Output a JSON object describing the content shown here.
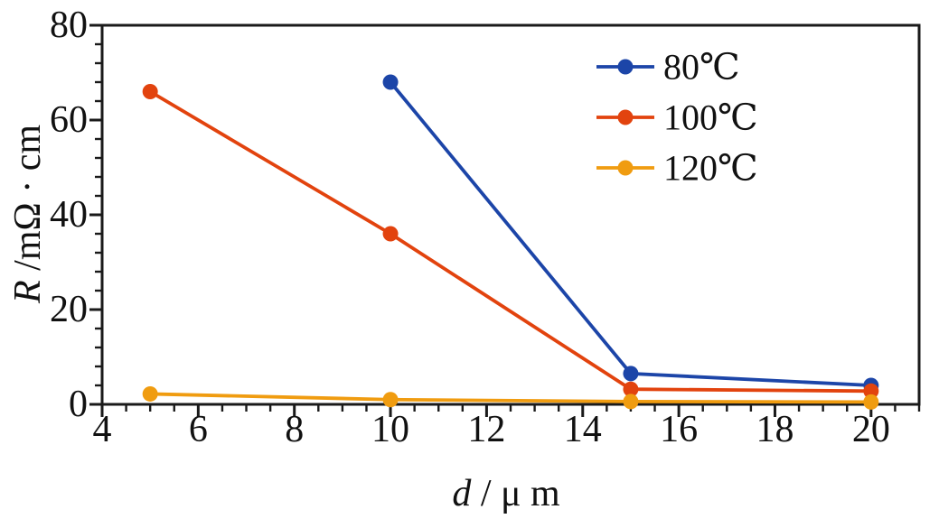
{
  "figure": {
    "background": "#ffffff",
    "axis_color": "#1a1a1a"
  },
  "chart_data": {
    "type": "line",
    "title": "",
    "xlabel": "d / μ m",
    "xlabel_var": "d",
    "xlabel_rest": " / μ m",
    "ylabel": "R /mΩ · cm",
    "ylabel_var": "R",
    "ylabel_rest": " /mΩ · cm",
    "xlim": [
      4,
      21
    ],
    "ylim": [
      0,
      80
    ],
    "x_major_ticks": [
      4,
      6,
      8,
      10,
      12,
      14,
      16,
      18,
      20
    ],
    "x_minor_step": 0.5,
    "y_major_ticks": [
      0,
      20,
      40,
      60,
      80
    ],
    "y_minor_step": 4,
    "grid": false,
    "legend_position": "upper-right-inside",
    "series": [
      {
        "name": "80℃",
        "color": "#1c45a8",
        "x": [
          10,
          15,
          20
        ],
        "y": [
          68,
          6.5,
          4
        ]
      },
      {
        "name": "100℃",
        "color": "#e2430e",
        "x": [
          5,
          10,
          15,
          20
        ],
        "y": [
          66,
          36,
          3.2,
          2.8
        ]
      },
      {
        "name": "120℃",
        "color": "#f09c10",
        "x": [
          5,
          10,
          15,
          20
        ],
        "y": [
          2.2,
          1,
          0.6,
          0.5
        ]
      }
    ]
  }
}
